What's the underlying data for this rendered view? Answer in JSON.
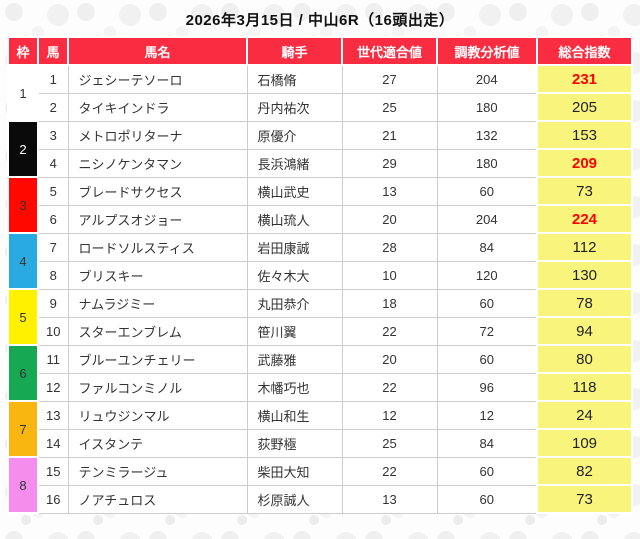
{
  "title": "2026年3月15日 / 中山6R（16頭出走）",
  "colors": {
    "header_bg": "#fa2c41",
    "header_text": "#ffffff",
    "index_bg": "#f9f47c",
    "highlight": "#ff0000",
    "border": "#cccccc",
    "text": "#333333"
  },
  "table": {
    "columns": [
      "枠",
      "馬",
      "馬名",
      "騎手",
      "世代適合値",
      "調教分析値",
      "総合指数"
    ],
    "frames": [
      {
        "number": 1,
        "color": "#ffffff",
        "text_color": "#333333"
      },
      {
        "number": 2,
        "color": "#0a0a0a",
        "text_color": "#ffffff"
      },
      {
        "number": 3,
        "color": "#ff0800",
        "text_color": "#333333"
      },
      {
        "number": 4,
        "color": "#29abe2",
        "text_color": "#333333"
      },
      {
        "number": 5,
        "color": "#fff100",
        "text_color": "#333333"
      },
      {
        "number": 6,
        "color": "#17a853",
        "text_color": "#333333"
      },
      {
        "number": 7,
        "color": "#f9b610",
        "text_color": "#333333"
      },
      {
        "number": 8,
        "color": "#f48ded",
        "text_color": "#333333"
      }
    ],
    "rows": [
      {
        "horse_number": "1",
        "horse_name": "ジェシーテソーロ",
        "jockey": "石橋脩",
        "generation_fit": "27",
        "training_analysis": "204",
        "total_index": "231",
        "highlight": true
      },
      {
        "horse_number": "2",
        "horse_name": "タイキインドラ",
        "jockey": "丹内祐次",
        "generation_fit": "25",
        "training_analysis": "180",
        "total_index": "205",
        "highlight": false
      },
      {
        "horse_number": "3",
        "horse_name": "メトロポリターナ",
        "jockey": "原優介",
        "generation_fit": "21",
        "training_analysis": "132",
        "total_index": "153",
        "highlight": false
      },
      {
        "horse_number": "4",
        "horse_name": "ニシノケンタマン",
        "jockey": "長浜鴻緒",
        "generation_fit": "29",
        "training_analysis": "180",
        "total_index": "209",
        "highlight": true
      },
      {
        "horse_number": "5",
        "horse_name": "ブレードサクセス",
        "jockey": "横山武史",
        "generation_fit": "13",
        "training_analysis": "60",
        "total_index": "73",
        "highlight": false
      },
      {
        "horse_number": "6",
        "horse_name": "アルプスオジョー",
        "jockey": "横山琉人",
        "generation_fit": "20",
        "training_analysis": "204",
        "total_index": "224",
        "highlight": true
      },
      {
        "horse_number": "7",
        "horse_name": "ロードソルスティス",
        "jockey": "岩田康誠",
        "generation_fit": "28",
        "training_analysis": "84",
        "total_index": "112",
        "highlight": false
      },
      {
        "horse_number": "8",
        "horse_name": "ブリスキー",
        "jockey": "佐々木大",
        "generation_fit": "10",
        "training_analysis": "120",
        "total_index": "130",
        "highlight": false
      },
      {
        "horse_number": "9",
        "horse_name": "ナムラジミー",
        "jockey": "丸田恭介",
        "generation_fit": "18",
        "training_analysis": "60",
        "total_index": "78",
        "highlight": false
      },
      {
        "horse_number": "10",
        "horse_name": "スターエンブレム",
        "jockey": "笹川翼",
        "generation_fit": "22",
        "training_analysis": "72",
        "total_index": "94",
        "highlight": false
      },
      {
        "horse_number": "11",
        "horse_name": "ブルーユンチェリー",
        "jockey": "武藤雅",
        "generation_fit": "20",
        "training_analysis": "60",
        "total_index": "80",
        "highlight": false
      },
      {
        "horse_number": "12",
        "horse_name": "ファルコンミノル",
        "jockey": "木幡巧也",
        "generation_fit": "22",
        "training_analysis": "96",
        "total_index": "118",
        "highlight": false
      },
      {
        "horse_number": "13",
        "horse_name": "リュウジンマル",
        "jockey": "横山和生",
        "generation_fit": "12",
        "training_analysis": "12",
        "total_index": "24",
        "highlight": false
      },
      {
        "horse_number": "14",
        "horse_name": "イスタンテ",
        "jockey": "荻野極",
        "generation_fit": "25",
        "training_analysis": "84",
        "total_index": "109",
        "highlight": false
      },
      {
        "horse_number": "15",
        "horse_name": "テンミラージュ",
        "jockey": "柴田大知",
        "generation_fit": "22",
        "training_analysis": "60",
        "total_index": "82",
        "highlight": false
      },
      {
        "horse_number": "16",
        "horse_name": "ノアチュロス",
        "jockey": "杉原誠人",
        "generation_fit": "13",
        "training_analysis": "60",
        "total_index": "73",
        "highlight": false
      }
    ]
  }
}
